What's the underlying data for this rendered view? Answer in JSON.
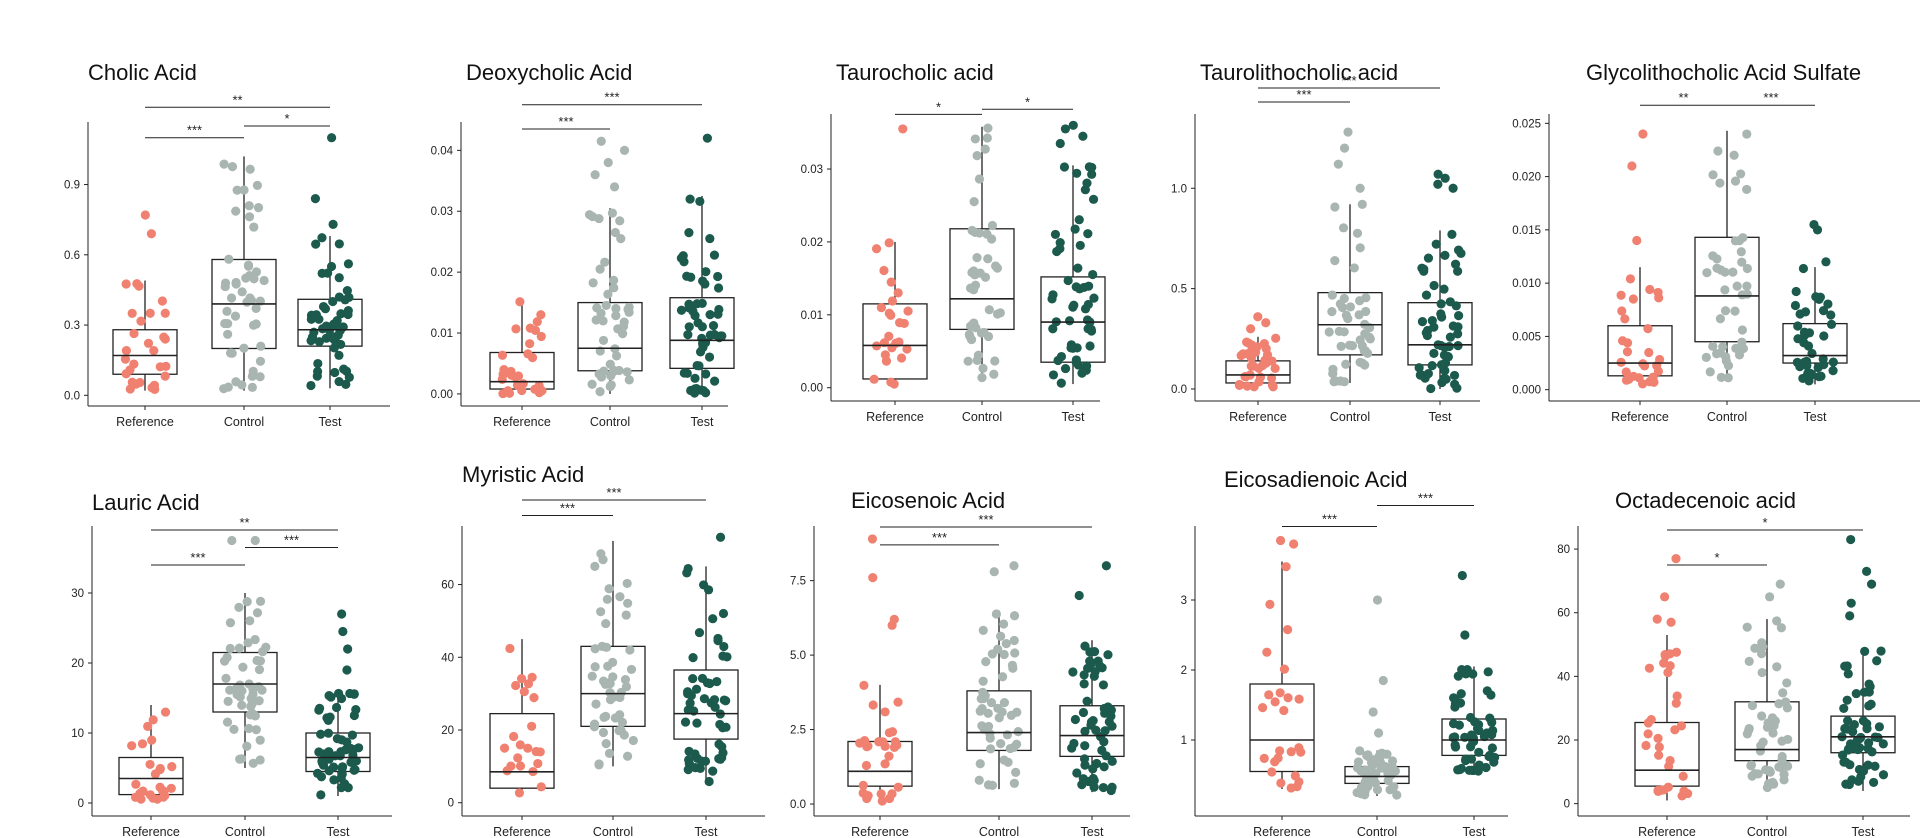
{
  "colors": {
    "Reference": "#f08070",
    "Control": "#a9b5b0",
    "Test": "#1b5a4c"
  },
  "chart_data": [
    {
      "type": "box",
      "title": "Cholic Acid",
      "categories": [
        "Reference",
        "Control",
        "Test"
      ],
      "yticks": [
        "0.0",
        "0.3",
        "0.6",
        "0.9"
      ],
      "ylim": [
        -0.02,
        1.15
      ],
      "stats": [
        {
          "min": 0.02,
          "q1": 0.09,
          "median": 0.17,
          "q3": 0.28,
          "max": 0.49
        },
        {
          "min": 0.02,
          "q1": 0.2,
          "median": 0.39,
          "q3": 0.58,
          "max": 1.02
        },
        {
          "min": 0.03,
          "q1": 0.21,
          "median": 0.28,
          "q3": 0.41,
          "max": 0.68
        }
      ],
      "outliers": [
        [
          0.77,
          0.69
        ],
        [],
        [
          0.73,
          0.84,
          1.1
        ]
      ],
      "n": [
        28,
        50,
        55
      ],
      "comparisons": [
        {
          "from": 0,
          "to": 2,
          "label": "**",
          "y": 1.23
        },
        {
          "from": 0,
          "to": 1,
          "label": "***",
          "y": 1.1
        },
        {
          "from": 1,
          "to": 2,
          "label": "*",
          "y": 1.15
        }
      ]
    },
    {
      "type": "box",
      "title": "Deoxycholic Acid",
      "categories": [
        "Reference",
        "Control",
        "Test"
      ],
      "yticks": [
        "0.00",
        "0.01",
        "0.02",
        "0.03",
        "0.04"
      ],
      "ylim": [
        -0.001,
        0.044
      ],
      "stats": [
        {
          "min": 0.0,
          "q1": 0.0008,
          "median": 0.002,
          "q3": 0.0068,
          "max": 0.0155
        },
        {
          "min": 0.0,
          "q1": 0.0038,
          "median": 0.0075,
          "q3": 0.015,
          "max": 0.0305
        },
        {
          "min": 0.0,
          "q1": 0.0042,
          "median": 0.0088,
          "q3": 0.0158,
          "max": 0.0325
        }
      ],
      "outliers": [
        [],
        [
          0.034,
          0.036,
          0.038,
          0.04,
          0.0415
        ],
        [
          0.042
        ]
      ],
      "n": [
        30,
        45,
        55
      ],
      "comparisons": [
        {
          "from": 0,
          "to": 2,
          "label": "***",
          "y": 0.0475
        },
        {
          "from": 0,
          "to": 1,
          "label": "***",
          "y": 0.0435
        }
      ]
    },
    {
      "type": "box",
      "title": "Taurocholic  acid",
      "categories": [
        "Reference",
        "Control",
        "Test"
      ],
      "yticks": [
        "0.00",
        "0.01",
        "0.02",
        "0.03"
      ],
      "ylim": [
        -0.001,
        0.037
      ],
      "stats": [
        {
          "min": 0.0005,
          "q1": 0.0012,
          "median": 0.0058,
          "q3": 0.0115,
          "max": 0.02
        },
        {
          "min": 0.001,
          "q1": 0.008,
          "median": 0.0122,
          "q3": 0.0218,
          "max": 0.0358
        },
        {
          "min": 0.0005,
          "q1": 0.0035,
          "median": 0.009,
          "q3": 0.0152,
          "max": 0.0305
        }
      ],
      "outliers": [
        [
          0.0355
        ],
        [],
        [
          0.0335,
          0.0345,
          0.0355,
          0.036
        ]
      ],
      "n": [
        25,
        45,
        55
      ],
      "comparisons": [
        {
          "from": 0,
          "to": 1,
          "label": "*",
          "y": 0.0375
        },
        {
          "from": 1,
          "to": 2,
          "label": "*",
          "y": 0.0382
        }
      ]
    },
    {
      "type": "box",
      "title": "Taurolithocholic  acid",
      "categories": [
        "Reference",
        "Control",
        "Test"
      ],
      "yticks": [
        "0.0",
        "0.5",
        "1.0"
      ],
      "ylim": [
        -0.03,
        1.35
      ],
      "stats": [
        {
          "min": 0.01,
          "q1": 0.03,
          "median": 0.07,
          "q3": 0.14,
          "max": 0.26
        },
        {
          "min": 0.03,
          "q1": 0.17,
          "median": 0.32,
          "q3": 0.48,
          "max": 0.92
        },
        {
          "min": 0.0,
          "q1": 0.12,
          "median": 0.22,
          "q3": 0.43,
          "max": 0.79
        }
      ],
      "outliers": [
        [
          0.3,
          0.33,
          0.36
        ],
        [
          1.0,
          1.12,
          1.2,
          1.28
        ],
        [
          1.0,
          1.02,
          1.05,
          1.07
        ]
      ],
      "n": [
        35,
        45,
        55
      ],
      "comparisons": [
        {
          "from": 0,
          "to": 2,
          "label": "***",
          "y": 1.55
        },
        {
          "from": 0,
          "to": 1,
          "label": "***",
          "y": 1.43
        }
      ]
    },
    {
      "type": "box",
      "title": "Glycolithocholic Acid Sulfate",
      "categories": [
        "Reference",
        "Control",
        "Test"
      ],
      "yticks": [
        "0.000",
        "0.005",
        "0.010",
        "0.015",
        "0.020",
        "0.025"
      ],
      "ylim": [
        -0.0005,
        0.0255
      ],
      "stats": [
        {
          "min": 0.0005,
          "q1": 0.0013,
          "median": 0.0025,
          "q3": 0.006,
          "max": 0.0115
        },
        {
          "min": 0.001,
          "q1": 0.0045,
          "median": 0.0088,
          "q3": 0.0143,
          "max": 0.0243
        },
        {
          "min": 0.0005,
          "q1": 0.0025,
          "median": 0.0032,
          "q3": 0.0062,
          "max": 0.0115
        }
      ],
      "outliers": [
        [
          0.014,
          0.021,
          0.024
        ],
        [],
        [
          0.012,
          0.015,
          0.0155
        ]
      ],
      "n": [
        28,
        45,
        40
      ],
      "comparisons": [
        {
          "from": 0,
          "to": 1,
          "label": "**",
          "y": 0.0267
        },
        {
          "from": 1,
          "to": 2,
          "label": "***",
          "y": 0.0267
        }
      ]
    },
    {
      "type": "box",
      "title": "Lauric  Acid",
      "categories": [
        "Reference",
        "Control",
        "Test"
      ],
      "yticks": [
        "0",
        "10",
        "20",
        "30"
      ],
      "ylim": [
        -1,
        39
      ],
      "stats": [
        {
          "min": 0.5,
          "q1": 1.2,
          "median": 3.5,
          "q3": 6.5,
          "max": 14.0
        },
        {
          "min": 5.0,
          "q1": 13.0,
          "median": 17.0,
          "q3": 21.5,
          "max": 30.0
        },
        {
          "min": 1.0,
          "q1": 4.5,
          "median": 6.5,
          "q3": 10.0,
          "max": 16.0
        }
      ],
      "outliers": [
        [],
        [
          37.5,
          37.5
        ],
        [
          19.0,
          22.0,
          24.5,
          27.0
        ]
      ],
      "n": [
        25,
        50,
        55
      ],
      "comparisons": [
        {
          "from": 0,
          "to": 2,
          "label": "**",
          "y": 39.0
        },
        {
          "from": 0,
          "to": 1,
          "label": "***",
          "y": 34.0
        },
        {
          "from": 1,
          "to": 2,
          "label": "***",
          "y": 36.5
        }
      ]
    },
    {
      "type": "box",
      "title": "Myristic Acid",
      "categories": [
        "Reference",
        "Control",
        "Test"
      ],
      "yticks": [
        "0",
        "20",
        "40",
        "60"
      ],
      "ylim": [
        -2,
        75
      ],
      "stats": [
        {
          "min": 2.0,
          "q1": 4.0,
          "median": 8.5,
          "q3": 24.5,
          "max": 45.0
        },
        {
          "min": 10.0,
          "q1": 21.0,
          "median": 30.0,
          "q3": 43.0,
          "max": 72.0
        },
        {
          "min": 5.0,
          "q1": 17.5,
          "median": 24.5,
          "q3": 36.5,
          "max": 65.0
        }
      ],
      "outliers": [
        [],
        [],
        [
          73.0
        ]
      ],
      "n": [
        22,
        50,
        55
      ],
      "comparisons": [
        {
          "from": 0,
          "to": 2,
          "label": "***",
          "y": 88.0
        },
        {
          "from": 0,
          "to": 1,
          "label": "***",
          "y": 79.0
        }
      ]
    },
    {
      "type": "box",
      "title": "Eicosenoic Acid",
      "categories": [
        "Reference",
        "Control",
        "Test"
      ],
      "yticks": [
        "0.0",
        "2.5",
        "5.0",
        "7.5"
      ],
      "ylim": [
        -0.2,
        9.2
      ],
      "stats": [
        {
          "min": 0.1,
          "q1": 0.6,
          "median": 1.1,
          "q3": 2.1,
          "max": 4.0
        },
        {
          "min": 0.5,
          "q1": 1.8,
          "median": 2.4,
          "q3": 3.8,
          "max": 6.5
        },
        {
          "min": 0.4,
          "q1": 1.6,
          "median": 2.3,
          "q3": 3.3,
          "max": 5.5
        }
      ],
      "outliers": [
        [
          6.0,
          6.2,
          7.6,
          8.9
        ],
        [
          7.8,
          8.0
        ],
        [
          7.0,
          8.0
        ]
      ],
      "n": [
        30,
        50,
        55
      ],
      "comparisons": [
        {
          "from": 0,
          "to": 2,
          "label": "***",
          "y": 9.3
        },
        {
          "from": 0,
          "to": 1,
          "label": "***",
          "y": 8.7
        }
      ]
    },
    {
      "type": "box",
      "title": "Eicosadienoic Acid",
      "categories": [
        "Reference",
        "Control",
        "Test"
      ],
      "yticks": [
        "1",
        "2",
        "3"
      ],
      "ylim": [
        0.0,
        4.0
      ],
      "stats": [
        {
          "min": 0.3,
          "q1": 0.55,
          "median": 1.0,
          "q3": 1.8,
          "max": 3.55
        },
        {
          "min": 0.2,
          "q1": 0.38,
          "median": 0.48,
          "q3": 0.62,
          "max": 0.85
        },
        {
          "min": 0.5,
          "q1": 0.78,
          "median": 1.0,
          "q3": 1.3,
          "max": 2.05
        }
      ],
      "outliers": [
        [
          3.8,
          3.85
        ],
        [
          1.1,
          1.4,
          1.85,
          3.0
        ],
        [
          2.5,
          3.35
        ]
      ],
      "n": [
        25,
        50,
        55
      ],
      "comparisons": [
        {
          "from": 0,
          "to": 1,
          "label": "***",
          "y": 4.05
        },
        {
          "from": 1,
          "to": 2,
          "label": "***",
          "y": 4.35
        }
      ]
    },
    {
      "type": "box",
      "title": "Octadecenoic acid",
      "categories": [
        "Reference",
        "Control",
        "Test"
      ],
      "yticks": [
        "0",
        "20",
        "40",
        "60",
        "80"
      ],
      "ylim": [
        -2,
        86
      ],
      "stats": [
        {
          "min": 1.0,
          "q1": 5.5,
          "median": 10.5,
          "q3": 25.5,
          "max": 53.0
        },
        {
          "min": 5.0,
          "q1": 13.5,
          "median": 17.0,
          "q3": 32.0,
          "max": 58.0
        },
        {
          "min": 4.0,
          "q1": 16.0,
          "median": 21.0,
          "q3": 27.5,
          "max": 48.0
        }
      ],
      "outliers": [
        [
          57.0,
          58.0,
          65.0,
          77.0
        ],
        [
          65.0,
          69.0
        ],
        [
          59.0,
          63.0,
          69.0,
          73.0,
          83.0
        ]
      ],
      "n": [
        30,
        50,
        55
      ],
      "comparisons": [
        {
          "from": 0,
          "to": 2,
          "label": "*",
          "y": 86.0
        },
        {
          "from": 0,
          "to": 1,
          "label": "*",
          "y": 75.0
        }
      ]
    }
  ]
}
